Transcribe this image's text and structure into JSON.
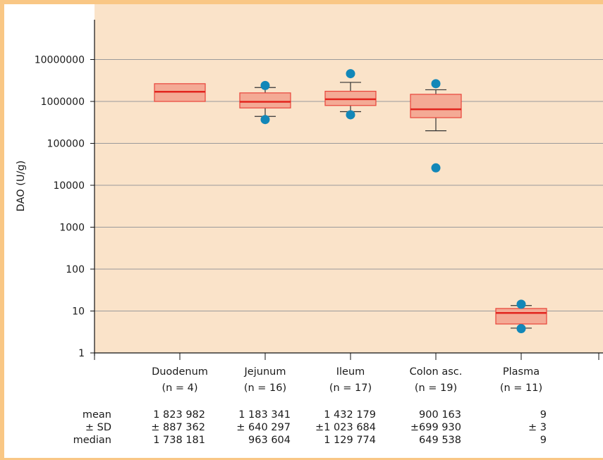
{
  "chart_data": {
    "type": "box",
    "ylabel": "DAO (U/g)",
    "yscale": "log",
    "ylim": [
      1,
      100000000
    ],
    "yticks": [
      1,
      10,
      100,
      1000,
      10000,
      100000,
      1000000,
      10000000
    ],
    "ytick_labels": [
      "1",
      "10",
      "100",
      "1000",
      "10000",
      "100000",
      "1000000",
      "10000000"
    ],
    "grid": true,
    "colors": {
      "plot_background": "#fae3c9",
      "box_fill": "#f4aa95",
      "box_edge": "#e8443a",
      "median_line": "#e2261f",
      "whisker": "#333333",
      "outlier": "#1287b8",
      "gridline": "#9a9a9a",
      "frame_border": "#f9c785"
    },
    "categories": [
      {
        "name": "Duodenum",
        "n_label": "(n = 4)",
        "q1": 1000000,
        "median": 1700000,
        "q3": 2650000,
        "whisker_low": null,
        "whisker_high": null,
        "outliers": []
      },
      {
        "name": "Jejunum",
        "n_label": "(n = 16)",
        "q1": 700000,
        "median": 980000,
        "q3": 1600000,
        "whisker_low": 440000,
        "whisker_high": 2150000,
        "outliers": [
          2400000,
          370000
        ]
      },
      {
        "name": "Ileum",
        "n_label": "(n = 17)",
        "q1": 800000,
        "median": 1130000,
        "q3": 1750000,
        "whisker_low": 570000,
        "whisker_high": 2850000,
        "outliers": [
          4600000,
          480000
        ]
      },
      {
        "name": "Colon asc.",
        "n_label": "(n = 19)",
        "q1": 410000,
        "median": 650000,
        "q3": 1480000,
        "whisker_low": 200000,
        "whisker_high": 1900000,
        "outliers": [
          2650000,
          26000
        ]
      },
      {
        "name": "Plasma",
        "n_label": "(n = 11)",
        "q1": 4.9,
        "median": 9,
        "q3": 11.5,
        "whisker_low": 3.9,
        "whisker_high": 13.5,
        "outliers": [
          14.5,
          3.8
        ]
      }
    ],
    "stats": {
      "row_labels": [
        "mean",
        "± SD",
        "median"
      ],
      "values": [
        [
          "1 823 982",
          "1 183 341",
          "1 432 179",
          "900 163",
          "9"
        ],
        [
          "± 887 362",
          "± 640 297",
          "±1 023 684",
          "±699 930",
          "± 3"
        ],
        [
          "1 738 181",
          "963 604",
          "1 129 774",
          "649 538",
          "9"
        ]
      ]
    }
  }
}
